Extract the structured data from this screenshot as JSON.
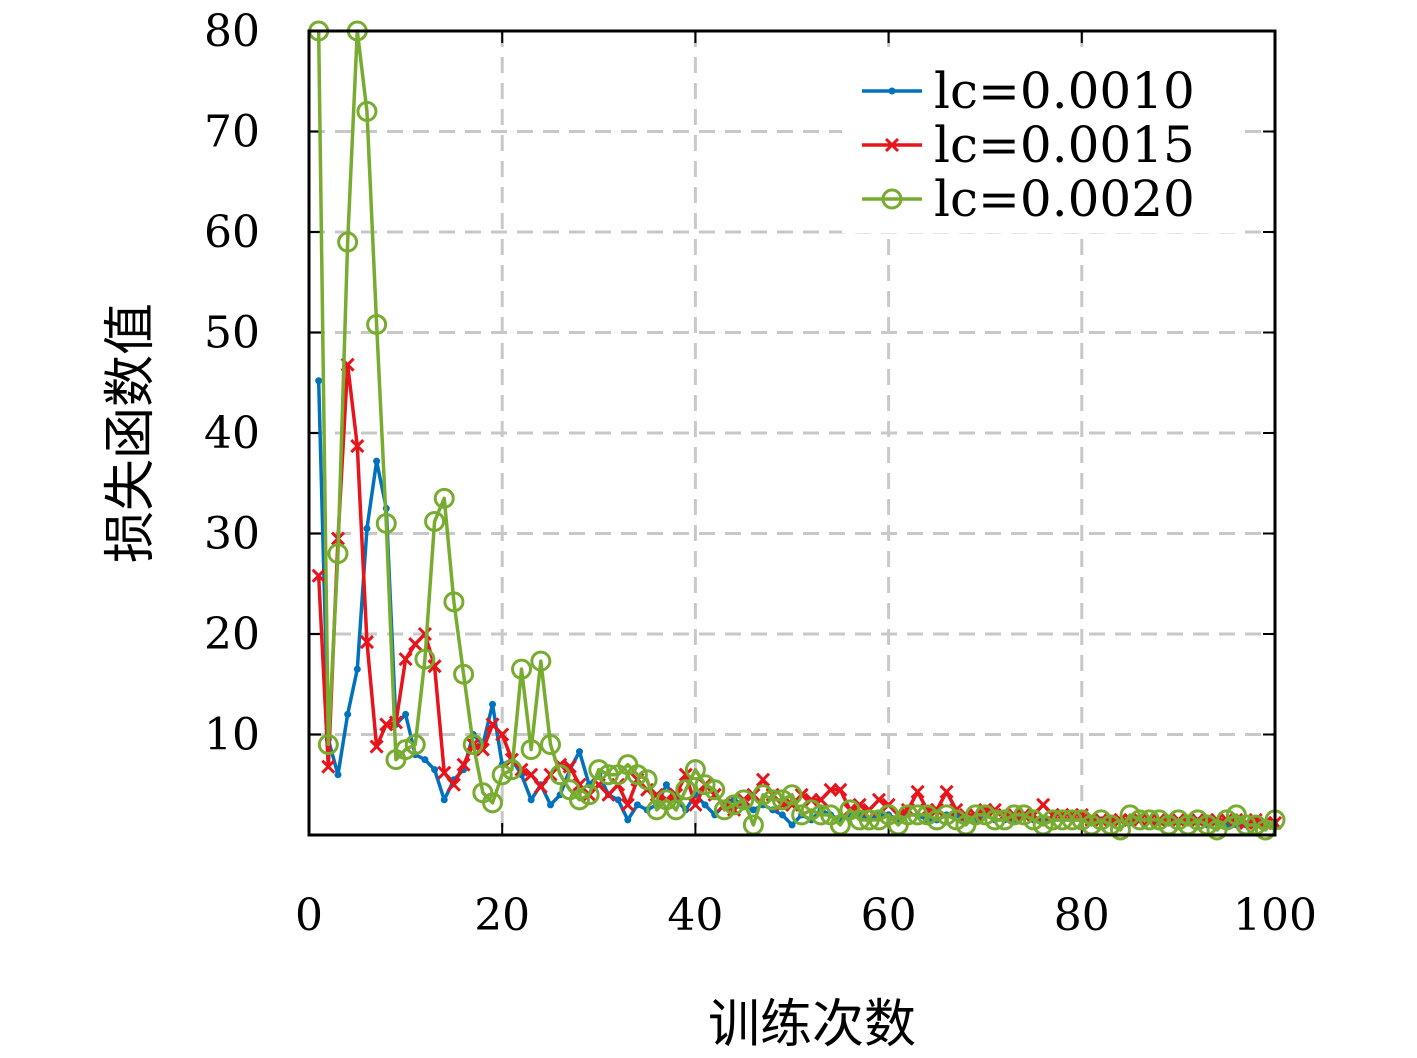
{
  "chart_data": {
    "type": "line",
    "title": "",
    "xlabel": "训练次数",
    "ylabel": "损失函数值",
    "xlim": [
      0,
      100
    ],
    "ylim": [
      0,
      80
    ],
    "xticks": [
      0,
      20,
      40,
      60,
      80,
      100
    ],
    "yticks": [
      10,
      20,
      30,
      40,
      50,
      60,
      70,
      80
    ],
    "grid": true,
    "legend_position": "top-right",
    "series": [
      {
        "name": "lc=0.0010",
        "color": "#0072BD",
        "marker": "dot",
        "x": [
          1,
          2,
          3,
          4,
          5,
          6,
          7,
          8,
          9,
          10,
          11,
          12,
          13,
          14,
          15,
          16,
          17,
          18,
          19,
          20,
          21,
          22,
          23,
          24,
          25,
          26,
          27,
          28,
          29,
          30,
          31,
          32,
          33,
          34,
          35,
          36,
          37,
          38,
          39,
          40,
          41,
          42,
          43,
          44,
          45,
          46,
          47,
          48,
          49,
          50,
          51,
          52,
          53,
          54,
          55,
          56,
          57,
          58,
          59,
          60,
          61,
          62,
          63,
          64,
          65,
          66,
          67,
          68,
          69,
          70,
          71,
          72,
          73,
          74,
          75,
          76,
          77,
          78,
          79,
          80,
          81,
          82,
          83,
          84,
          85,
          86,
          87,
          88,
          89,
          90,
          91,
          92,
          93,
          94,
          95,
          96,
          97,
          98,
          99,
          100
        ],
        "y": [
          45.2,
          9.5,
          6.0,
          12.0,
          16.5,
          30.5,
          37.2,
          32.5,
          11.0,
          12.0,
          8.0,
          7.5,
          6.5,
          3.5,
          5.5,
          6.5,
          10.0,
          9.0,
          13.0,
          7.0,
          7.5,
          6.0,
          3.5,
          5.0,
          3.0,
          4.0,
          6.5,
          8.3,
          5.0,
          6.0,
          4.0,
          3.5,
          1.5,
          3.0,
          2.5,
          3.0,
          5.0,
          3.5,
          2.5,
          4.0,
          3.0,
          2.0,
          3.0,
          3.5,
          3.0,
          2.5,
          3.0,
          2.5,
          2.0,
          1.0,
          2.0,
          1.5,
          2.5,
          2.0,
          1.5,
          2.0,
          2.0,
          1.5,
          2.0,
          2.0,
          1.5,
          2.0,
          2.0,
          1.5,
          1.5,
          2.0,
          2.0,
          1.5,
          1.5,
          2.0,
          1.5,
          1.5,
          1.5,
          2.0,
          1.5,
          1.5,
          1.5,
          1.5,
          1.5,
          1.5,
          1.5,
          1.5,
          1.5,
          1.5,
          1.2,
          1.5,
          1.5,
          1.2,
          1.2,
          1.2,
          1.2,
          1.2,
          1.0,
          1.2,
          1.0,
          1.0,
          1.0,
          0.9,
          1.0,
          1.0
        ]
      },
      {
        "name": "lc=0.0015",
        "color": "#E8141C",
        "marker": "x",
        "x": [
          1,
          2,
          3,
          4,
          5,
          6,
          7,
          8,
          9,
          10,
          11,
          12,
          13,
          14,
          15,
          16,
          17,
          18,
          19,
          20,
          21,
          22,
          23,
          24,
          25,
          26,
          27,
          28,
          29,
          30,
          31,
          32,
          33,
          34,
          35,
          36,
          37,
          38,
          39,
          40,
          41,
          42,
          43,
          44,
          45,
          46,
          47,
          48,
          49,
          50,
          51,
          52,
          53,
          54,
          55,
          56,
          57,
          58,
          59,
          60,
          61,
          62,
          63,
          64,
          65,
          66,
          67,
          68,
          69,
          70,
          71,
          72,
          73,
          74,
          75,
          76,
          77,
          78,
          79,
          80,
          81,
          82,
          83,
          84,
          85,
          86,
          87,
          88,
          89,
          90,
          91,
          92,
          93,
          94,
          95,
          96,
          97,
          98,
          99,
          100
        ],
        "y": [
          25.8,
          6.8,
          29.5,
          46.8,
          38.7,
          19.2,
          8.8,
          11.0,
          11.2,
          17.5,
          19.0,
          20.0,
          16.8,
          6.2,
          5.0,
          7.0,
          9.0,
          8.5,
          11.0,
          10.0,
          7.5,
          6.5,
          6.0,
          4.8,
          6.0,
          7.0,
          6.8,
          5.0,
          4.0,
          5.0,
          4.0,
          5.0,
          3.0,
          5.5,
          4.5,
          4.0,
          3.5,
          4.0,
          6.0,
          3.0,
          5.0,
          4.0,
          3.0,
          2.5,
          3.5,
          4.0,
          5.5,
          4.0,
          3.0,
          3.0,
          4.0,
          3.5,
          3.5,
          4.5,
          4.5,
          2.5,
          3.0,
          2.5,
          3.5,
          3.0,
          2.0,
          2.5,
          4.3,
          2.5,
          2.5,
          4.3,
          2.5,
          2.0,
          2.0,
          2.5,
          2.5,
          2.0,
          2.0,
          2.0,
          2.0,
          3.0,
          2.0,
          2.0,
          2.0,
          2.0,
          1.5,
          1.5,
          1.5,
          1.5,
          1.5,
          1.5,
          1.5,
          1.5,
          1.5,
          1.5,
          1.5,
          1.5,
          1.5,
          1.5,
          1.5,
          1.5,
          1.2,
          1.5,
          1.2,
          1.2
        ]
      },
      {
        "name": "lc=0.0020",
        "color": "#77AC30",
        "marker": "circle",
        "x": [
          1,
          2,
          3,
          4,
          5,
          6,
          7,
          8,
          9,
          10,
          11,
          12,
          13,
          14,
          15,
          16,
          17,
          18,
          19,
          20,
          21,
          22,
          23,
          24,
          25,
          26,
          27,
          28,
          29,
          30,
          31,
          32,
          33,
          34,
          35,
          36,
          37,
          38,
          39,
          40,
          41,
          42,
          43,
          44,
          45,
          46,
          47,
          48,
          49,
          50,
          51,
          52,
          53,
          54,
          55,
          56,
          57,
          58,
          59,
          60,
          61,
          62,
          63,
          64,
          65,
          66,
          67,
          68,
          69,
          70,
          71,
          72,
          73,
          74,
          75,
          76,
          77,
          78,
          79,
          80,
          81,
          82,
          83,
          84,
          85,
          86,
          87,
          88,
          89,
          90,
          91,
          92,
          93,
          94,
          95,
          96,
          97,
          98,
          99,
          100
        ],
        "y": [
          80.0,
          9.0,
          28.0,
          59.0,
          80.0,
          72.0,
          50.8,
          31.0,
          7.5,
          8.5,
          9.0,
          17.5,
          31.2,
          33.5,
          23.2,
          16.0,
          9.0,
          4.2,
          3.2,
          6.0,
          6.5,
          16.5,
          8.5,
          17.3,
          9.0,
          6.0,
          4.5,
          3.5,
          4.0,
          6.5,
          6.0,
          6.0,
          7.0,
          6.0,
          5.5,
          2.5,
          3.5,
          2.5,
          4.5,
          6.5,
          5.0,
          4.5,
          2.5,
          3.0,
          3.5,
          1.0,
          4.0,
          3.5,
          3.5,
          4.0,
          2.0,
          2.5,
          2.0,
          2.0,
          1.0,
          2.5,
          1.5,
          1.5,
          1.5,
          2.0,
          1.0,
          2.0,
          2.0,
          2.0,
          1.5,
          2.0,
          1.5,
          1.0,
          2.0,
          2.0,
          1.5,
          1.5,
          2.0,
          2.0,
          1.5,
          1.0,
          1.5,
          1.5,
          1.5,
          1.5,
          1.0,
          1.5,
          1.0,
          0.5,
          2.0,
          1.5,
          1.5,
          1.5,
          1.0,
          1.5,
          1.0,
          1.5,
          1.0,
          0.5,
          1.5,
          2.0,
          1.0,
          1.0,
          0.5,
          1.5
        ]
      }
    ]
  }
}
